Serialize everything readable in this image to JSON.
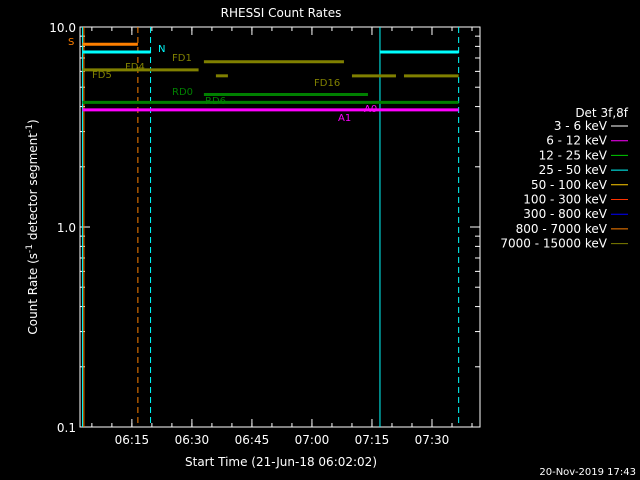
{
  "chart_data": {
    "type": "line",
    "title": "RHESSI Count Rates",
    "xlabel": "Start Time (21-Jun-18 06:02:02)",
    "ylabel_main": "Count Rate (s",
    "ylabel_sup1": "-1",
    "ylabel_mid": " detector segment",
    "ylabel_sup2": "-1",
    "ylabel_end": ")",
    "yscale": "log",
    "ylim": [
      0.1,
      10.0
    ],
    "xlim": [
      "06:02:02",
      "07:42:00"
    ],
    "x_ticks": [
      "06:15",
      "06:30",
      "06:45",
      "07:00",
      "07:15",
      "07:30"
    ],
    "y_ticks": [
      "10.0",
      "1.0",
      "0.1"
    ],
    "legend_title": "Det 3f,8f",
    "legend_position": "right",
    "series": [
      {
        "name": "3 - 6 keV",
        "color": "#000000"
      },
      {
        "name": "6 - 12 keV",
        "color": "#ff00ff"
      },
      {
        "name": "12 - 25 keV",
        "color": "#00cc00"
      },
      {
        "name": "25 - 50 keV",
        "color": "#00ffff"
      },
      {
        "name": "50 - 100 keV",
        "color": "#ffcc00"
      },
      {
        "name": "100 - 300 keV",
        "color": "#ff3300"
      },
      {
        "name": "300 - 800 keV",
        "color": "#0000ff"
      },
      {
        "name": "800 - 7000 keV",
        "color": "#ff8000"
      },
      {
        "name": "7000 - 15000 keV",
        "color": "#808000"
      }
    ],
    "annotations": [
      {
        "label": "S",
        "color": "#ff8000"
      },
      {
        "label": "N",
        "color": "#00ffff"
      },
      {
        "label": "FD1",
        "color": "#808000"
      },
      {
        "label": "FD4",
        "color": "#808000"
      },
      {
        "label": "FD5",
        "color": "#808000"
      },
      {
        "label": "FD16",
        "color": "#808000"
      },
      {
        "label": "RD0",
        "color": "#008000"
      },
      {
        "label": "RD6",
        "color": "#008000"
      },
      {
        "label": "A0",
        "color": "#ff00ff"
      },
      {
        "label": "A1",
        "color": "#ff00ff"
      }
    ],
    "footer": "20-Nov-2019 17:43"
  }
}
